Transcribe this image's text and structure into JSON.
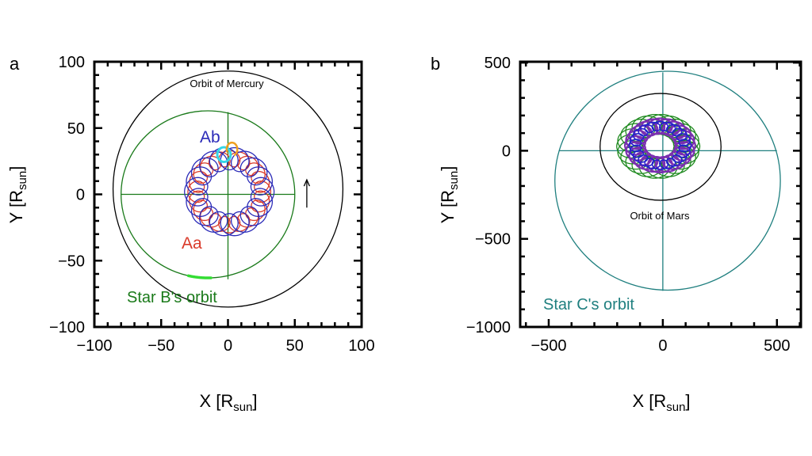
{
  "chart_data": [
    {
      "type": "line",
      "panel_label": "a",
      "xlabel": "X [R",
      "xlabel_sub": "sun",
      "xlabel_end": "]",
      "ylabel": "Y [R",
      "ylabel_sub": "sun",
      "ylabel_end": "]",
      "xlim": [
        -100,
        100
      ],
      "ylim": [
        -100,
        100
      ],
      "xticks": [
        -100,
        -50,
        0,
        50,
        100
      ],
      "yticks": [
        -100,
        -50,
        0,
        50,
        100
      ],
      "xtick_labels": [
        "−100",
        "−50",
        "0",
        "50",
        "100"
      ],
      "ytick_labels": [
        "−100",
        "−50",
        "0",
        "50",
        "100"
      ],
      "minor_step": 10,
      "annotations": {
        "mercury": "Orbit of Mercury",
        "star_b": "Star B's orbit",
        "ab": "Ab",
        "aa": "Aa"
      },
      "series": [
        {
          "kind": "ellipse",
          "label_ref": "mercury",
          "color": "#000000",
          "center": [
            0,
            4
          ],
          "radii": [
            86,
            89
          ]
        },
        {
          "kind": "ellipse",
          "label_ref": "star_b",
          "color": "#1a7a1a",
          "center": [
            -15,
            0
          ],
          "radii": [
            65,
            63
          ]
        },
        {
          "kind": "cross",
          "color": "#1a7a1a",
          "x": [
            -80,
            50
          ],
          "y": [
            -64,
            62
          ],
          "at": [
            0,
            0
          ]
        },
        {
          "kind": "epicycle",
          "label_ref": "aa",
          "color": "#d93a2a",
          "center": [
            1,
            2
          ],
          "R": 25,
          "r": 6,
          "loops": 21
        },
        {
          "kind": "epicycle",
          "label_ref": "ab",
          "color": "#2a2ab8",
          "center": [
            1,
            2
          ],
          "R": 25,
          "r": 8.5,
          "loops": 19
        },
        {
          "kind": "ellipse",
          "color": "#33d6e6",
          "center": [
            -3,
            30
          ],
          "radii": [
            5,
            5.5
          ],
          "width": 3
        },
        {
          "kind": "arc",
          "color": "#f0a020",
          "center": [
            3,
            34
          ],
          "radii": [
            4,
            5
          ],
          "from": -60,
          "to": 200,
          "width": 2.5
        },
        {
          "kind": "arc",
          "color": "#33dd33",
          "center": [
            -15,
            0
          ],
          "radii": [
            65,
            63
          ],
          "from": 257,
          "to": 272,
          "width": 3.5
        },
        {
          "kind": "arrow",
          "color": "#000000",
          "from": [
            59,
            -10
          ],
          "to": [
            59,
            11
          ]
        }
      ]
    },
    {
      "type": "line",
      "panel_label": "b",
      "xlabel": "X [R",
      "xlabel_sub": "sun",
      "xlabel_end": "]",
      "ylabel": "Y [R",
      "ylabel_sub": "sun",
      "ylabel_end": "]",
      "xlim": [
        -625,
        605
      ],
      "ylim": [
        -1000,
        505
      ],
      "xticks": [
        -500,
        0,
        500
      ],
      "yticks": [
        -1000,
        -500,
        0,
        500
      ],
      "xtick_labels": [
        "−500",
        "0",
        "500"
      ],
      "ytick_labels": [
        "−1000",
        "−500",
        "0",
        "500"
      ],
      "minor_step": 100,
      "annotations": {
        "mars": "Orbit of Mars",
        "star_c": "Star C's orbit"
      },
      "series": [
        {
          "kind": "ellipse",
          "label_ref": "star_c",
          "color": "#1f7f7f",
          "center": [
            21,
            -170
          ],
          "radii": [
            494,
            621
          ]
        },
        {
          "kind": "cross",
          "color": "#1f7f7f",
          "x": [
            -455,
            500
          ],
          "y": [
            -795,
            445
          ],
          "at": [
            0,
            0
          ]
        },
        {
          "kind": "ellipse",
          "label_ref": "mars",
          "color": "#000000",
          "center": [
            -10,
            22
          ],
          "radii": [
            265,
            303
          ]
        },
        {
          "kind": "epicycle",
          "color": "#1f8a1f",
          "center": [
            -20,
            25
          ],
          "R": 125,
          "r": 57,
          "loops": 23
        },
        {
          "kind": "epicycle",
          "color": "#7a2fb0",
          "center": [
            -12,
            30
          ],
          "R": 110,
          "r": 44,
          "loops": 21,
          "width": 2.2
        },
        {
          "kind": "epicycle",
          "color": "#2222cc",
          "center": [
            -12,
            30
          ],
          "R": 110,
          "r": 26,
          "loops": 21,
          "width": 1.6
        }
      ]
    }
  ]
}
